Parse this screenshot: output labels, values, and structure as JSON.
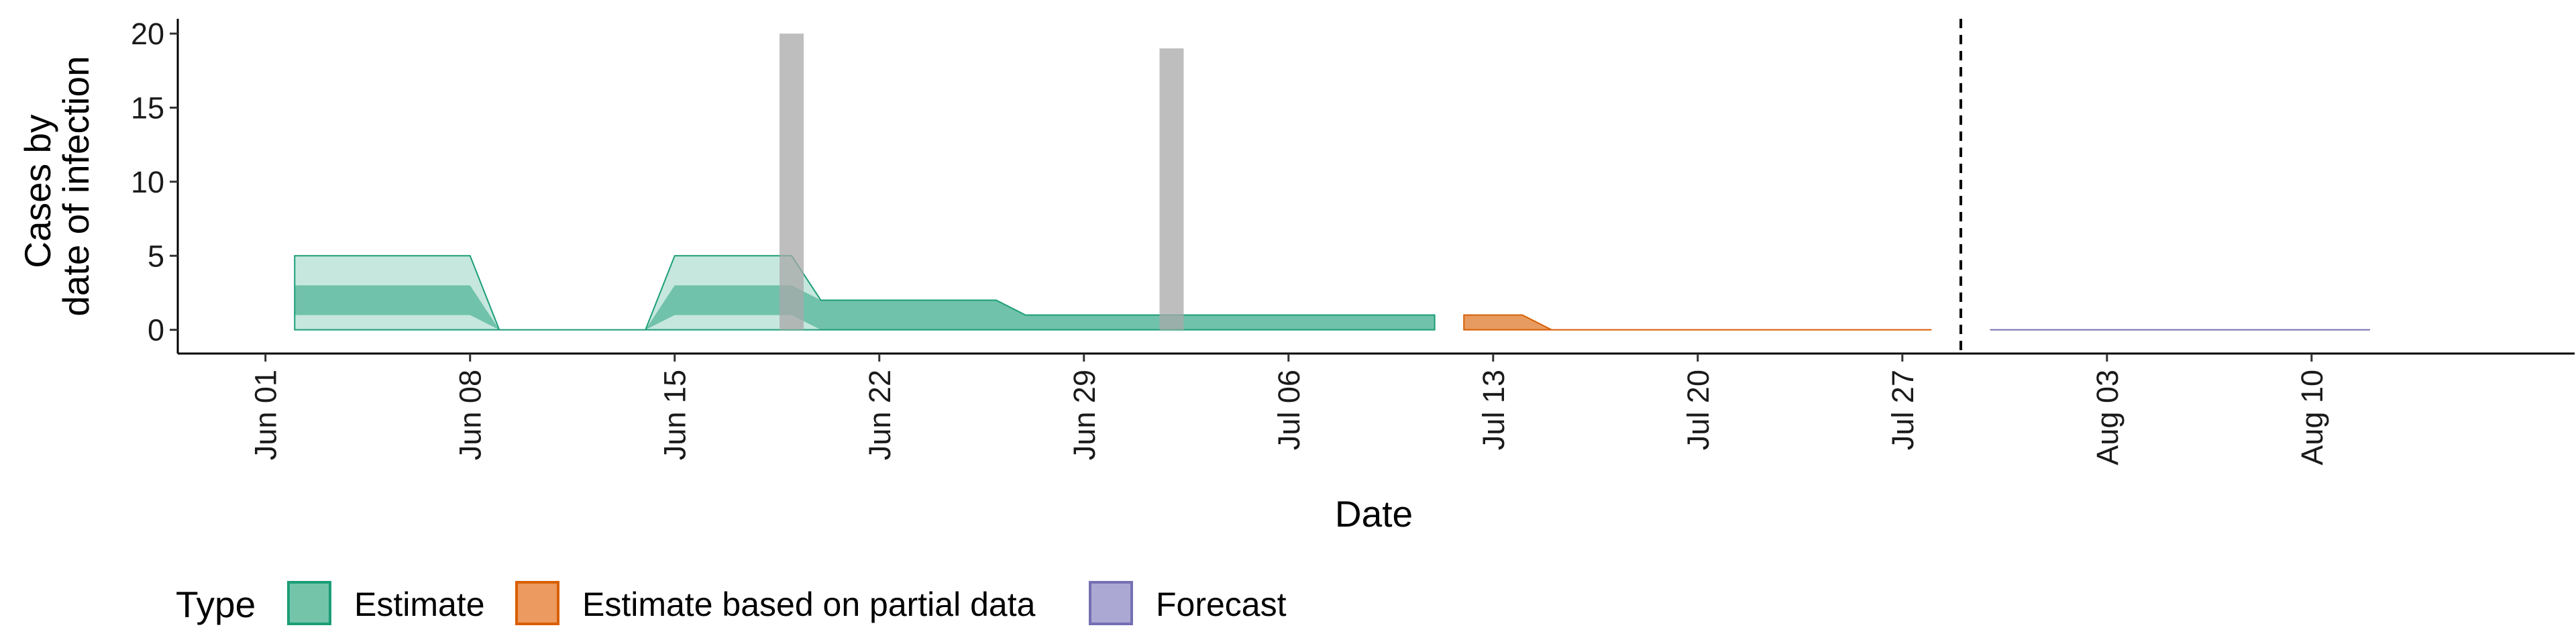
{
  "chart_data": {
    "type": "area",
    "xlabel": "Date",
    "ylabel_lines": [
      "Cases by",
      "date of infection"
    ],
    "x_range": [
      "2020-05-29",
      "2020-08-19"
    ],
    "ylim": [
      -1.6,
      21
    ],
    "y_ticks": [
      0,
      5,
      10,
      15,
      20
    ],
    "x_ticks": [
      {
        "date": "2020-06-01",
        "label": "Jun 01"
      },
      {
        "date": "2020-06-08",
        "label": "Jun 08"
      },
      {
        "date": "2020-06-15",
        "label": "Jun 15"
      },
      {
        "date": "2020-06-22",
        "label": "Jun 22"
      },
      {
        "date": "2020-06-29",
        "label": "Jun 29"
      },
      {
        "date": "2020-07-06",
        "label": "Jul 06"
      },
      {
        "date": "2020-07-13",
        "label": "Jul 13"
      },
      {
        "date": "2020-07-20",
        "label": "Jul 20"
      },
      {
        "date": "2020-07-27",
        "label": "Jul 27"
      },
      {
        "date": "2020-08-03",
        "label": "Aug 03"
      },
      {
        "date": "2020-08-10",
        "label": "Aug 10"
      }
    ],
    "grid": false,
    "reference_line": {
      "date": "2020-07-29",
      "style": "dashed"
    },
    "reported_cases": [
      {
        "date": "2020-06-19",
        "value": 20
      },
      {
        "date": "2020-07-02",
        "value": 19
      }
    ],
    "series": [
      {
        "name": "Estimate",
        "color": "#1b9e77",
        "segments": [
          {
            "x": [
              "2020-06-02",
              "2020-06-08",
              "2020-06-09",
              "2020-06-14",
              "2020-06-15",
              "2020-06-19",
              "2020-06-20",
              "2020-06-26",
              "2020-06-27",
              "2020-07-11"
            ],
            "lower90": [
              0,
              0,
              0,
              0,
              0,
              0,
              0,
              0,
              0,
              0
            ],
            "upper90": [
              5,
              5,
              0,
              0,
              5,
              5,
              2,
              2,
              1,
              1
            ],
            "lower50": [
              1,
              1,
              0,
              0,
              1,
              1,
              0,
              0,
              0,
              0
            ],
            "upper50": [
              3,
              3,
              0,
              0,
              3,
              3,
              2,
              2,
              1,
              1
            ]
          }
        ]
      },
      {
        "name": "Estimate based on partial data",
        "color": "#d95f02",
        "segments": [
          {
            "x": [
              "2020-07-12",
              "2020-07-14",
              "2020-07-15",
              "2020-07-28"
            ],
            "lower90": [
              0,
              0,
              0,
              0
            ],
            "upper90": [
              1,
              1,
              0,
              0
            ],
            "lower50": [
              0,
              0,
              0,
              0
            ],
            "upper50": [
              1,
              1,
              0,
              0
            ]
          }
        ]
      },
      {
        "name": "Forecast",
        "color": "#7570b3",
        "segments": [
          {
            "x": [
              "2020-07-30",
              "2020-08-12"
            ],
            "lower90": [
              0,
              0
            ],
            "upper90": [
              0,
              0
            ],
            "lower50": [
              0,
              0
            ],
            "upper50": [
              0,
              0
            ]
          }
        ]
      }
    ],
    "legend": {
      "title": "Type",
      "position": "bottom",
      "items": [
        {
          "label": "Estimate",
          "fill": "#74c4aa",
          "stroke": "#1b9e77"
        },
        {
          "label": "Estimate based on partial data",
          "fill": "#ec9a5f",
          "stroke": "#d95f02"
        },
        {
          "label": "Forecast",
          "fill": "#aba8d4",
          "stroke": "#7570b3"
        }
      ]
    }
  }
}
